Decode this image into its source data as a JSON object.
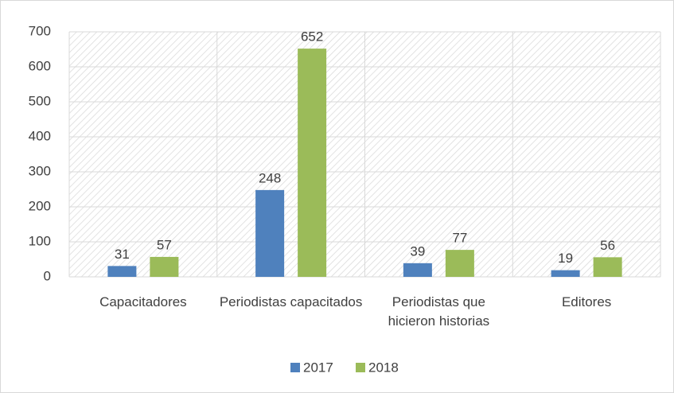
{
  "chart_data": {
    "type": "bar",
    "categories": [
      "Capacitadores",
      "Periodistas capacitados",
      "Periodistas que hicieron historias",
      "Editores"
    ],
    "series": [
      {
        "name": "2017",
        "color": "#4f81bd",
        "values": [
          31,
          248,
          39,
          19
        ]
      },
      {
        "name": "2018",
        "color": "#9bbb59",
        "values": [
          57,
          652,
          77,
          56
        ]
      }
    ],
    "ylim": [
      0,
      700
    ],
    "yticks": [
      0,
      100,
      200,
      300,
      400,
      500,
      600,
      700
    ],
    "grid": true,
    "legend": "bottom"
  }
}
